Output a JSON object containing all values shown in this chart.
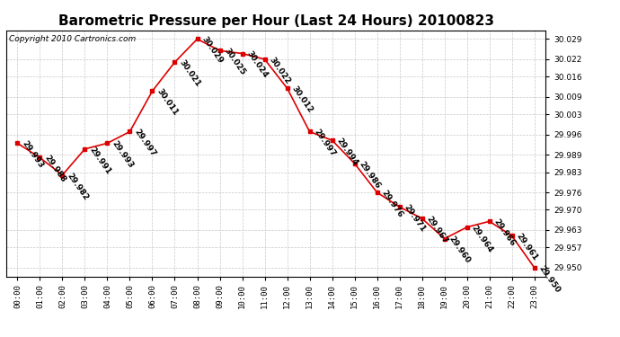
{
  "title": "Barometric Pressure per Hour (Last 24 Hours) 20100823",
  "copyright": "Copyright 2010 Cartronics.com",
  "hours": [
    "00:00",
    "01:00",
    "02:00",
    "03:00",
    "04:00",
    "05:00",
    "06:00",
    "07:00",
    "08:00",
    "09:00",
    "10:00",
    "11:00",
    "12:00",
    "13:00",
    "14:00",
    "15:00",
    "16:00",
    "17:00",
    "18:00",
    "19:00",
    "20:00",
    "21:00",
    "22:00",
    "23:00"
  ],
  "values": [
    29.993,
    29.988,
    29.982,
    29.991,
    29.993,
    29.997,
    30.011,
    30.021,
    30.029,
    30.025,
    30.024,
    30.022,
    30.012,
    29.997,
    29.994,
    29.986,
    29.976,
    29.971,
    29.967,
    29.96,
    29.964,
    29.966,
    29.961,
    29.95
  ],
  "ylim_min": 29.947,
  "ylim_max": 30.032,
  "yticks": [
    29.95,
    29.957,
    29.963,
    29.97,
    29.976,
    29.983,
    29.989,
    29.996,
    30.003,
    30.009,
    30.016,
    30.022,
    30.029
  ],
  "line_color": "#dd0000",
  "marker_color": "#dd0000",
  "bg_color": "#ffffff",
  "grid_color": "#c8c8c8",
  "title_fontsize": 11,
  "copyright_fontsize": 6.5,
  "tick_fontsize": 6.5,
  "annotation_fontsize": 6.5,
  "annotation_rotation": -55
}
